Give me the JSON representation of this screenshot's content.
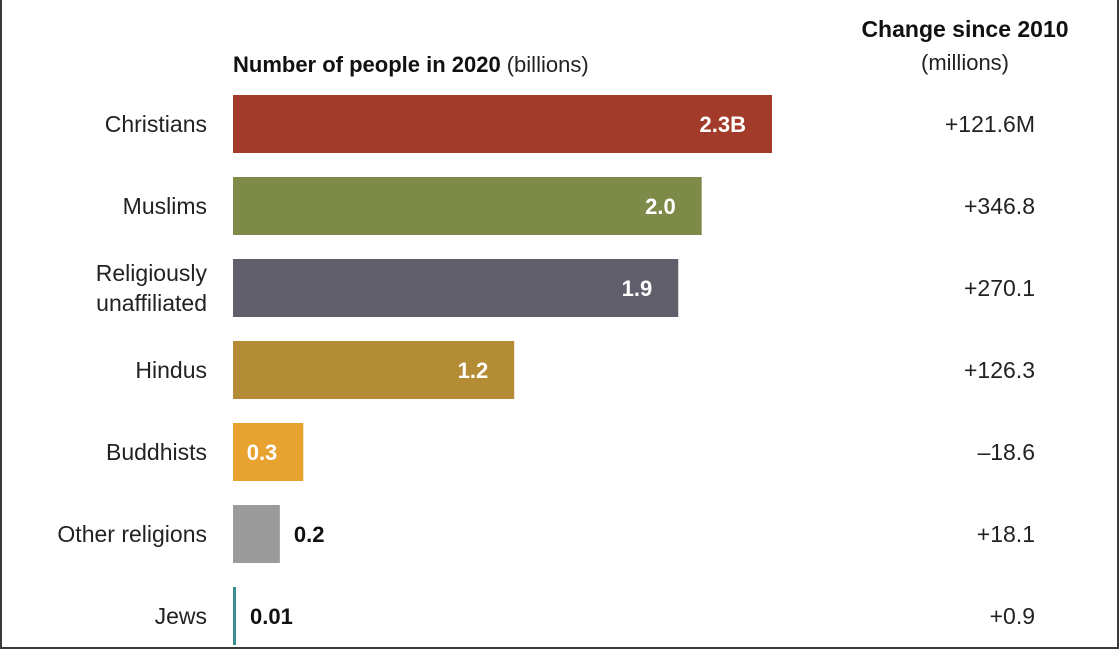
{
  "header": {
    "title_bold": "Number of people in 2020",
    "title_unit": "(billions)",
    "change_title": "Change since 2010",
    "change_unit": "(millions)"
  },
  "chart_data": {
    "type": "bar",
    "orientation": "horizontal",
    "title": "Number of people in 2020 (billions)",
    "categories": [
      [
        "Christians"
      ],
      [
        "Muslims"
      ],
      [
        "Religiously",
        "unaffiliated"
      ],
      [
        "Hindus"
      ],
      [
        "Buddhists"
      ],
      [
        "Other religions"
      ],
      [
        "Jews"
      ]
    ],
    "values": [
      2.3,
      2.0,
      1.9,
      1.2,
      0.3,
      0.2,
      0.01
    ],
    "value_labels": [
      "2.3B",
      "2.0",
      "1.9",
      "1.2",
      "0.3",
      "0.2",
      "0.01"
    ],
    "label_position": [
      "inside",
      "inside",
      "inside",
      "inside",
      "inside",
      "outside",
      "outside"
    ],
    "colors": [
      "#a23b2a",
      "#7d8a48",
      "#615f6b",
      "#b38c35",
      "#e8a230",
      "#9b9b9b",
      "#3b8c8f"
    ],
    "change_since_2010": [
      "+121.6M",
      "+346.8",
      "+270.1",
      "+126.3",
      "–18.6",
      "+18.1",
      "+0.9"
    ],
    "xlim": [
      0,
      2.3
    ]
  }
}
